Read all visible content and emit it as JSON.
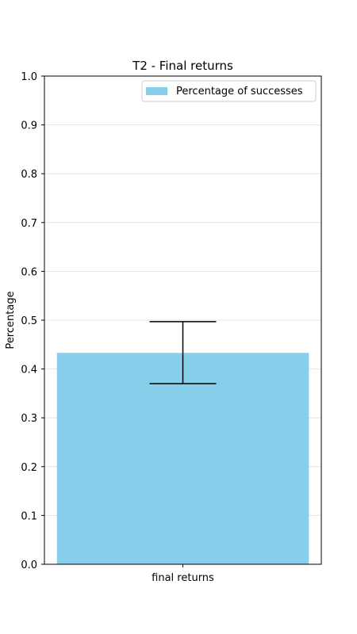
{
  "chart_data": {
    "type": "bar",
    "title": "T2 - Final returns",
    "xlabel": "",
    "ylabel": "Percentage",
    "categories": [
      "final returns"
    ],
    "series": [
      {
        "name": "Percentage of successes",
        "values": [
          0.433
        ],
        "error_low": [
          0.37
        ],
        "error_high": [
          0.497
        ],
        "color": "#87ceeb"
      }
    ],
    "ylim": [
      0,
      1.0
    ],
    "yticks": [
      "0.0",
      "0.1",
      "0.2",
      "0.3",
      "0.4",
      "0.5",
      "0.6",
      "0.7",
      "0.8",
      "0.9",
      "1.0"
    ],
    "grid": "horizontal",
    "legend_position": "top-right"
  }
}
